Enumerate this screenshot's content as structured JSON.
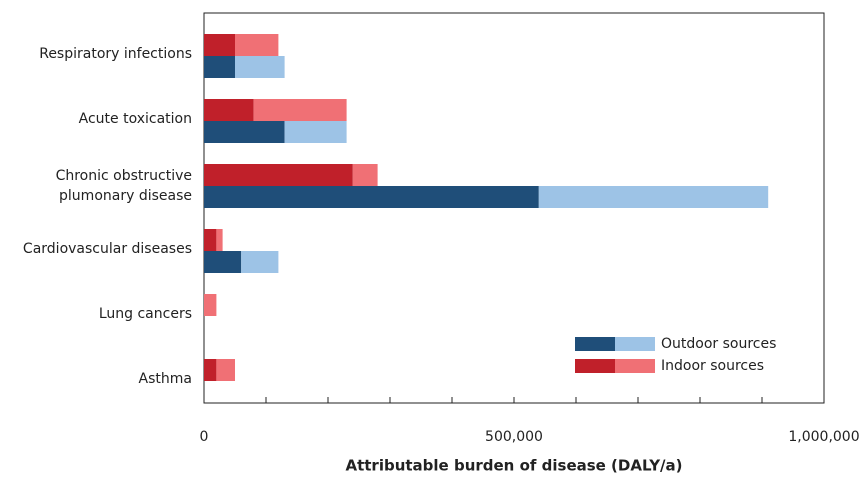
{
  "chart_data": {
    "type": "stacked-pair-barh",
    "xlabel": "Attributable burden of disease (DALY/a)",
    "categories": [
      "Respiratory infections",
      "Acute toxication",
      [
        "Chronic obstructive",
        "plumonary disease"
      ],
      "Cardiovascular diseases",
      "Lung cancers",
      "Asthma"
    ],
    "series": [
      {
        "name": "Outdoor sources",
        "colors": [
          "#1f4e79",
          "#9dc3e6"
        ],
        "values": [
          [
            50000,
            80000
          ],
          [
            130000,
            100000
          ],
          [
            540000,
            370000
          ],
          [
            60000,
            60000
          ],
          [
            0,
            0
          ],
          [
            0,
            0
          ]
        ]
      },
      {
        "name": "Indoor sources",
        "colors": [
          "#c0202a",
          "#f07075"
        ],
        "values": [
          [
            50000,
            70000
          ],
          [
            80000,
            150000
          ],
          [
            240000,
            40000
          ],
          [
            20000,
            10000
          ],
          [
            0,
            20000
          ],
          [
            20000,
            30000
          ]
        ]
      }
    ],
    "xlim": [
      0,
      1000000
    ],
    "xticks": [
      {
        "value": 0,
        "label": "0"
      },
      {
        "value": 500000,
        "label": "500,000"
      },
      {
        "value": 1000000,
        "label": "1,000,000"
      }
    ],
    "xminor_ticks": [
      100000,
      200000,
      300000,
      400000,
      600000,
      700000,
      800000,
      900000
    ],
    "legend": "lower-right"
  }
}
